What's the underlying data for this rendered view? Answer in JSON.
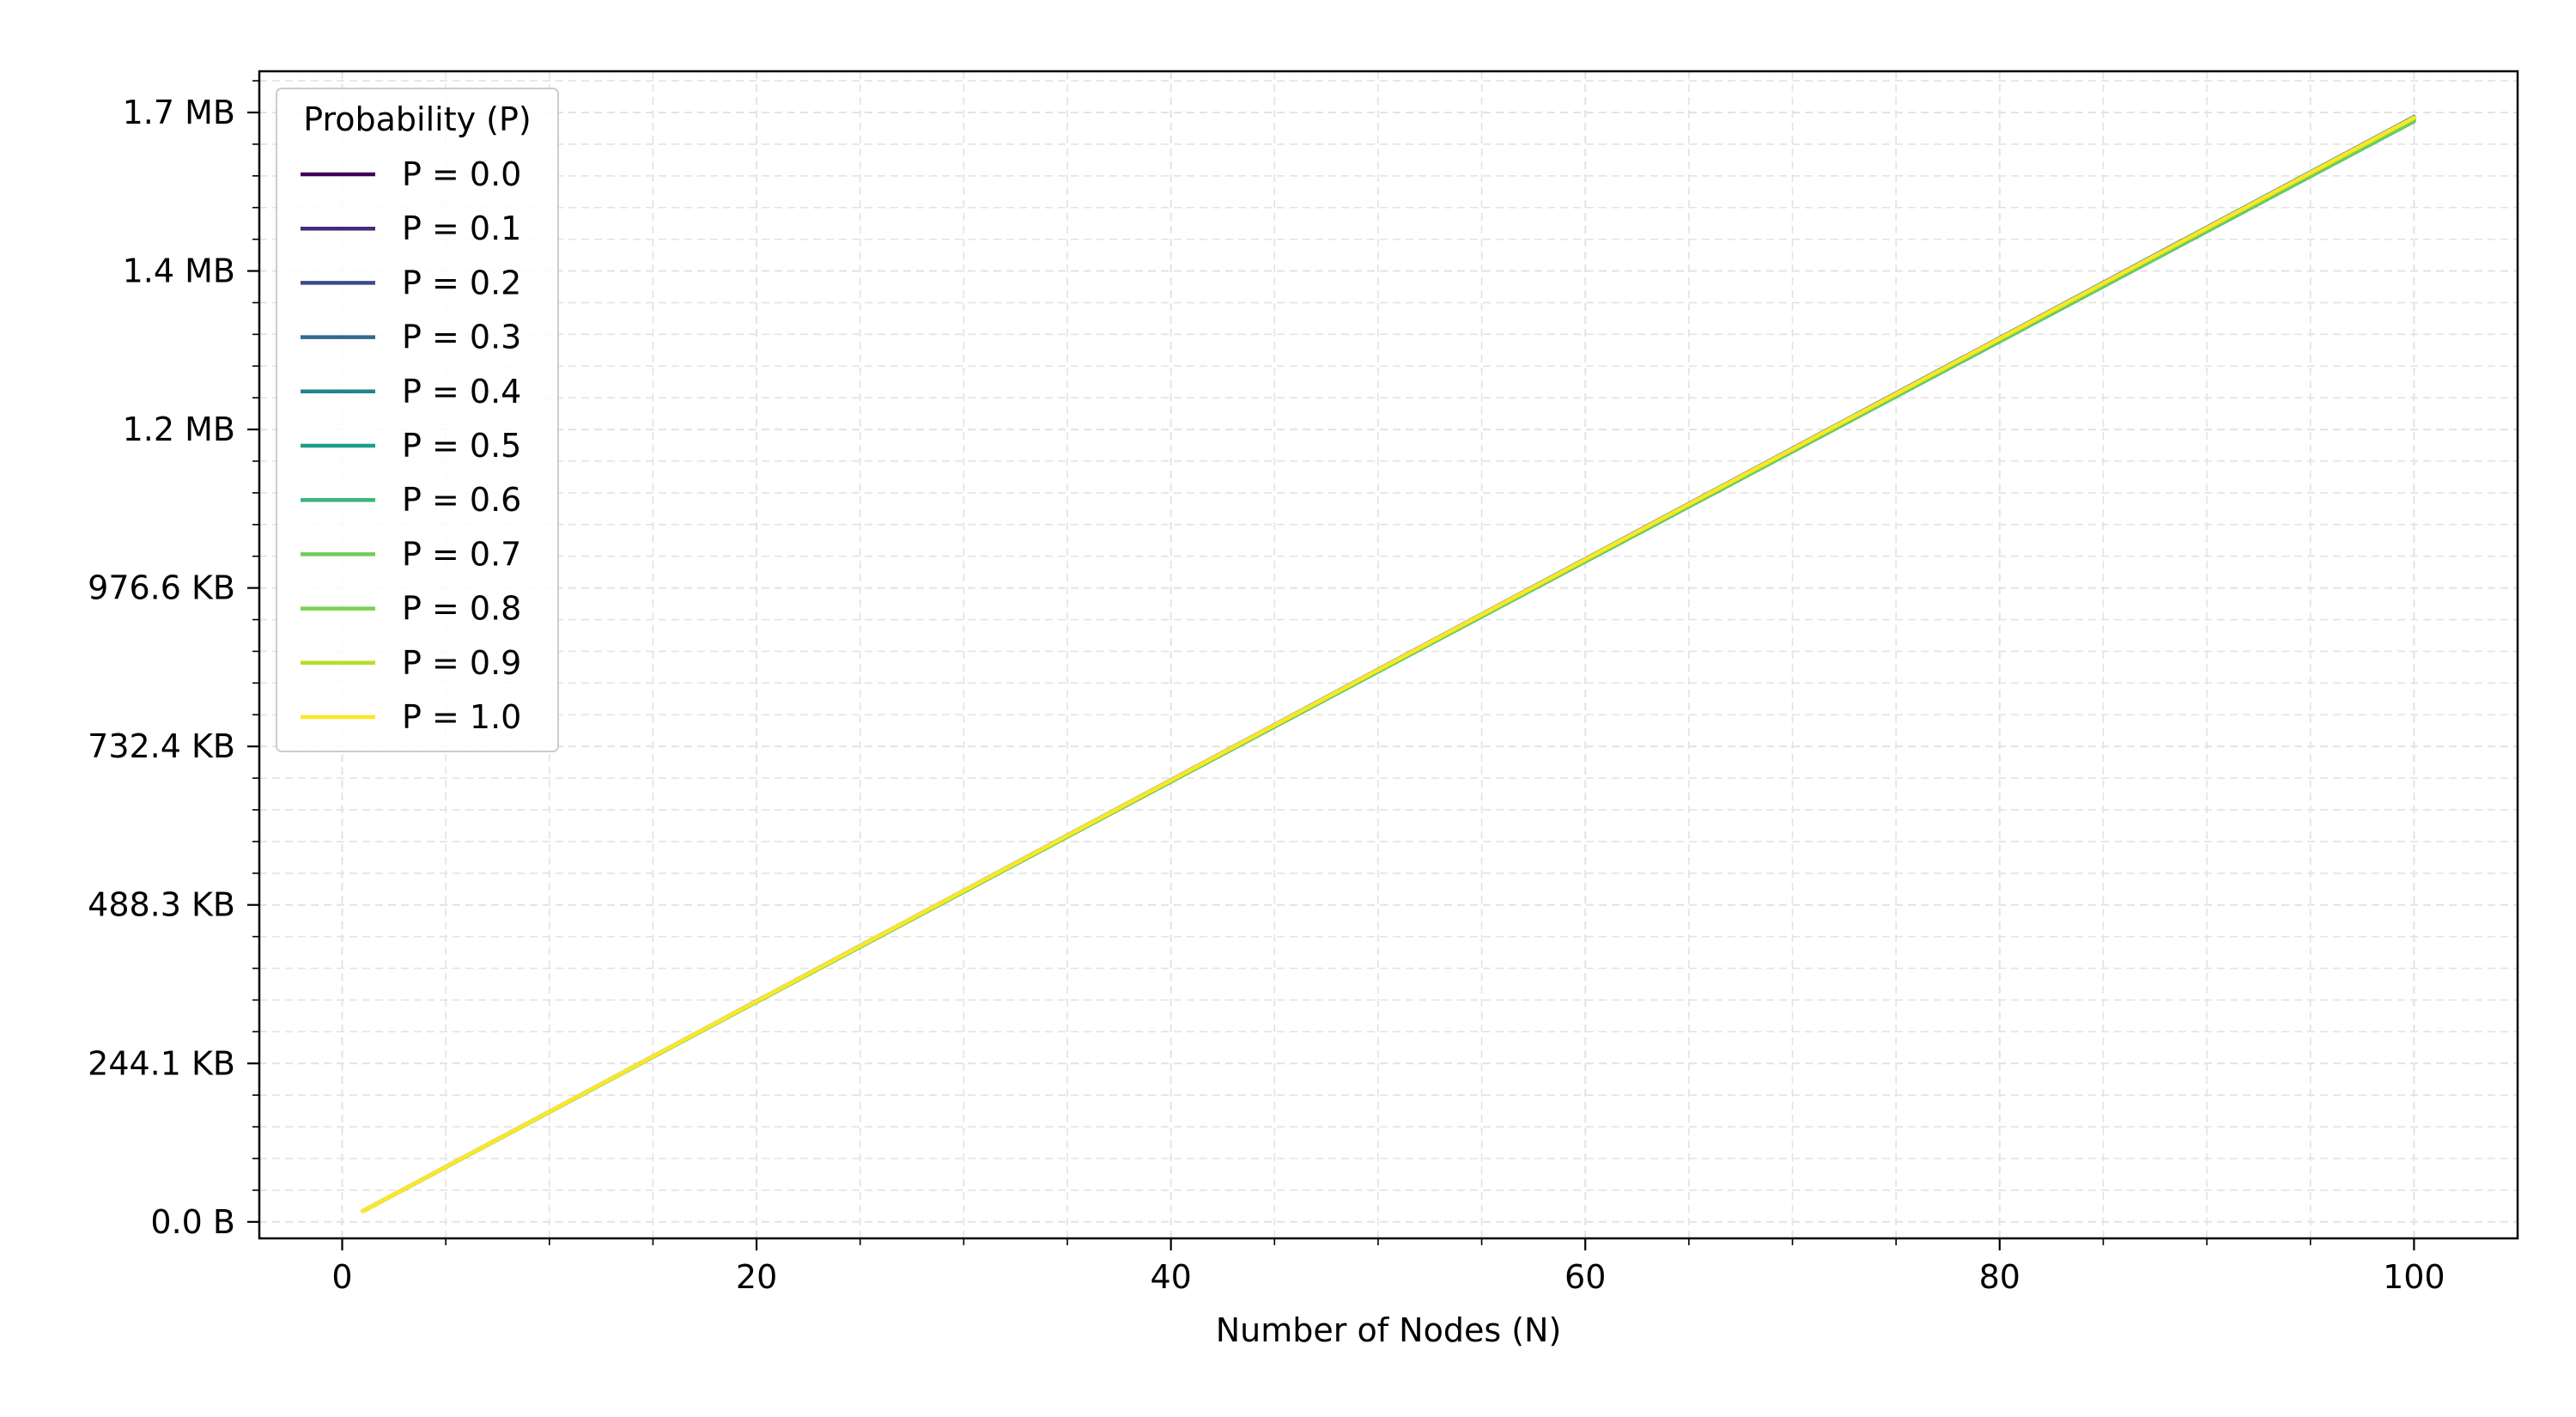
{
  "chart_data": {
    "type": "line",
    "xlabel": "Number of Nodes (N)",
    "ylabel": "",
    "xlim": [
      -4,
      105
    ],
    "ylim": [
      -26000,
      1815000
    ],
    "x_ticks": [
      {
        "value": 0,
        "label": "0"
      },
      {
        "value": 20,
        "label": "20"
      },
      {
        "value": 40,
        "label": "40"
      },
      {
        "value": 60,
        "label": "60"
      },
      {
        "value": 80,
        "label": "80"
      },
      {
        "value": 100,
        "label": "100"
      }
    ],
    "y_ticks": [
      {
        "value": 0,
        "label": "0.0 B"
      },
      {
        "value": 250000,
        "label": "244.1 KB"
      },
      {
        "value": 500000,
        "label": "488.3 KB"
      },
      {
        "value": 750000,
        "label": "732.4 KB"
      },
      {
        "value": 1000000,
        "label": "976.6 KB"
      },
      {
        "value": 1250000,
        "label": "1.2 MB"
      },
      {
        "value": 1500000,
        "label": "1.4 MB"
      },
      {
        "value": 1750000,
        "label": "1.7 MB"
      }
    ],
    "grid": true,
    "legend": {
      "title": "Probability (P)",
      "placement": "upper-left"
    },
    "x": [
      1,
      100
    ],
    "series": [
      {
        "name": "P = 0.0",
        "color": "#440154",
        "values": [
          17000,
          1738000
        ]
      },
      {
        "name": "P = 0.1",
        "color": "#482878",
        "values": [
          17000,
          1740000
        ]
      },
      {
        "name": "P = 0.2",
        "color": "#3e4989",
        "values": [
          17000,
          1741000
        ]
      },
      {
        "name": "P = 0.3",
        "color": "#31688e",
        "values": [
          17000,
          1743000
        ]
      },
      {
        "name": "P = 0.4",
        "color": "#26828e",
        "values": [
          17000,
          1742000
        ]
      },
      {
        "name": "P = 0.5",
        "color": "#1f9e89",
        "values": [
          17000,
          1739000
        ]
      },
      {
        "name": "P = 0.6",
        "color": "#35b779",
        "values": [
          17000,
          1736000
        ]
      },
      {
        "name": "P = 0.7",
        "color": "#6ece58",
        "values": [
          17000,
          1737000
        ]
      },
      {
        "name": "P = 0.8",
        "color": "#7ad151",
        "values": [
          17000,
          1740000
        ]
      },
      {
        "name": "P = 0.9",
        "color": "#b5de2b",
        "values": [
          17000,
          1741000
        ]
      },
      {
        "name": "P = 1.0",
        "color": "#fde725",
        "values": [
          17000,
          1742000
        ]
      }
    ]
  }
}
